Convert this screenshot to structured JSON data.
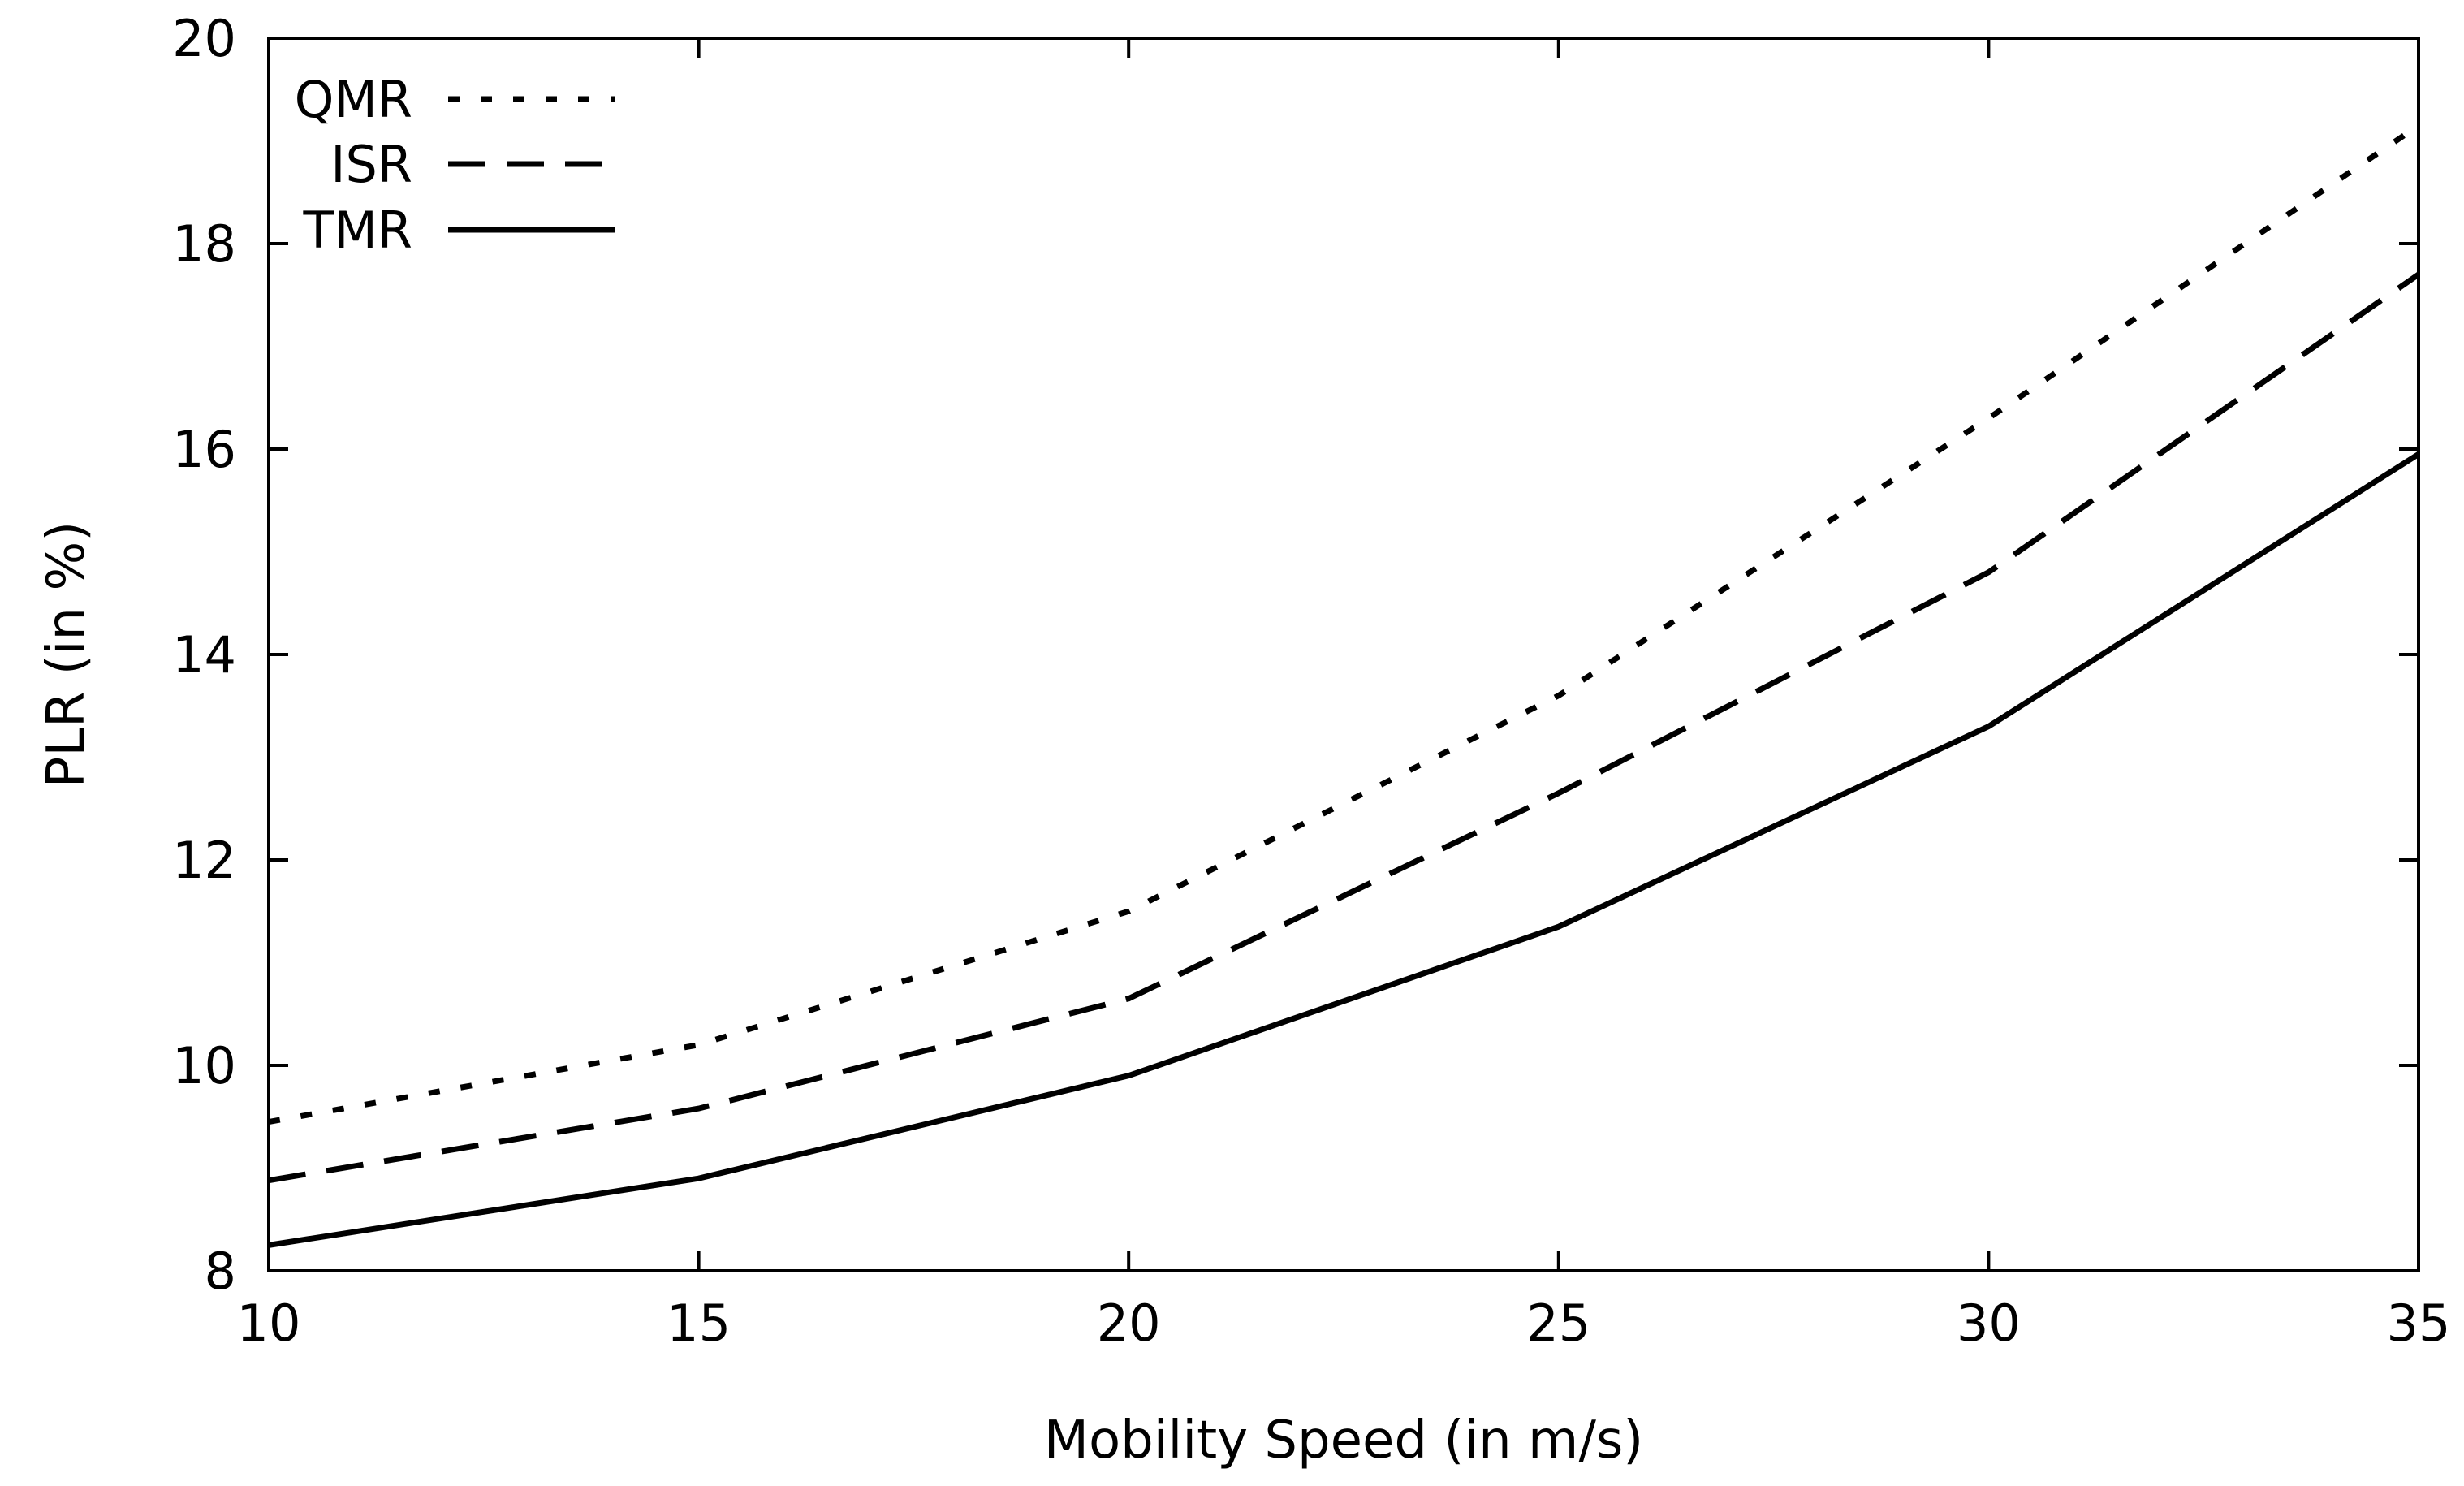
{
  "chart_data": {
    "type": "line",
    "title": "",
    "xlabel": "Mobility Speed (in m/s)",
    "ylabel": "PLR (in %)",
    "xlim": [
      10,
      35
    ],
    "ylim": [
      8,
      20
    ],
    "xticks": [
      10,
      15,
      20,
      25,
      30,
      35
    ],
    "yticks": [
      8,
      10,
      12,
      14,
      16,
      18,
      20
    ],
    "grid": false,
    "legend_position": "top-left",
    "x": [
      10,
      15,
      20,
      25,
      30,
      35
    ],
    "series": [
      {
        "name": "QMR",
        "style": "dotted",
        "values": [
          9.45,
          10.2,
          11.5,
          13.6,
          16.3,
          19.15
        ]
      },
      {
        "name": "ISR",
        "style": "dashed",
        "values": [
          8.88,
          9.58,
          10.65,
          12.65,
          14.8,
          17.7
        ]
      },
      {
        "name": "TMR",
        "style": "solid",
        "values": [
          8.25,
          8.9,
          9.9,
          11.35,
          13.3,
          15.95
        ]
      }
    ],
    "colors": {
      "line": "#000000",
      "background": "#ffffff"
    }
  }
}
